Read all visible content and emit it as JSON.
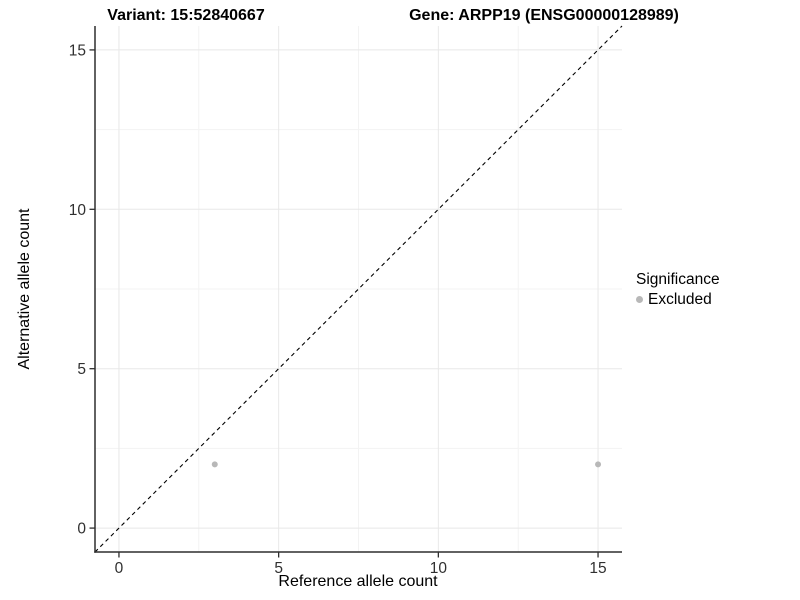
{
  "titles": {
    "variant": "Variant: 15:52840667",
    "gene": "Gene: ARPP19 (ENSG00000128989)"
  },
  "axes": {
    "x_label": "Reference allele count",
    "y_label": "Alternative allele count"
  },
  "legend": {
    "title": "Significance",
    "items": [
      {
        "label": "Excluded",
        "color": "#b8b8b8"
      }
    ]
  },
  "colors": {
    "background": "#ffffff",
    "axis_line": "#2f2f2f",
    "tick_label": "#303030",
    "grid_major": "#e8e8e8",
    "grid_minor": "#f3f3f3",
    "point": "#b8b8b8",
    "reference_line": "#000000"
  },
  "chart_data": {
    "type": "scatter",
    "title": "Variant: 15:52840667 — Gene: ARPP19 (ENSG00000128989)",
    "xlabel": "Reference allele count",
    "ylabel": "Alternative allele count",
    "xlim": [
      -0.75,
      15.75
    ],
    "ylim": [
      -0.75,
      15.75
    ],
    "x_ticks": [
      0,
      5,
      10,
      15
    ],
    "y_ticks": [
      0,
      5,
      10,
      15
    ],
    "x_minor_ticks": [
      2.5,
      7.5,
      12.5
    ],
    "y_minor_ticks": [
      2.5,
      7.5,
      12.5
    ],
    "grid": true,
    "legend_position": "right",
    "legend_title": "Significance",
    "series": [
      {
        "name": "Excluded",
        "color": "#b8b8b8",
        "points": [
          [
            3,
            2
          ],
          [
            15,
            2
          ]
        ]
      }
    ],
    "reference_line": {
      "type": "identity",
      "slope": 1,
      "intercept": 0,
      "style": "dashed"
    }
  }
}
